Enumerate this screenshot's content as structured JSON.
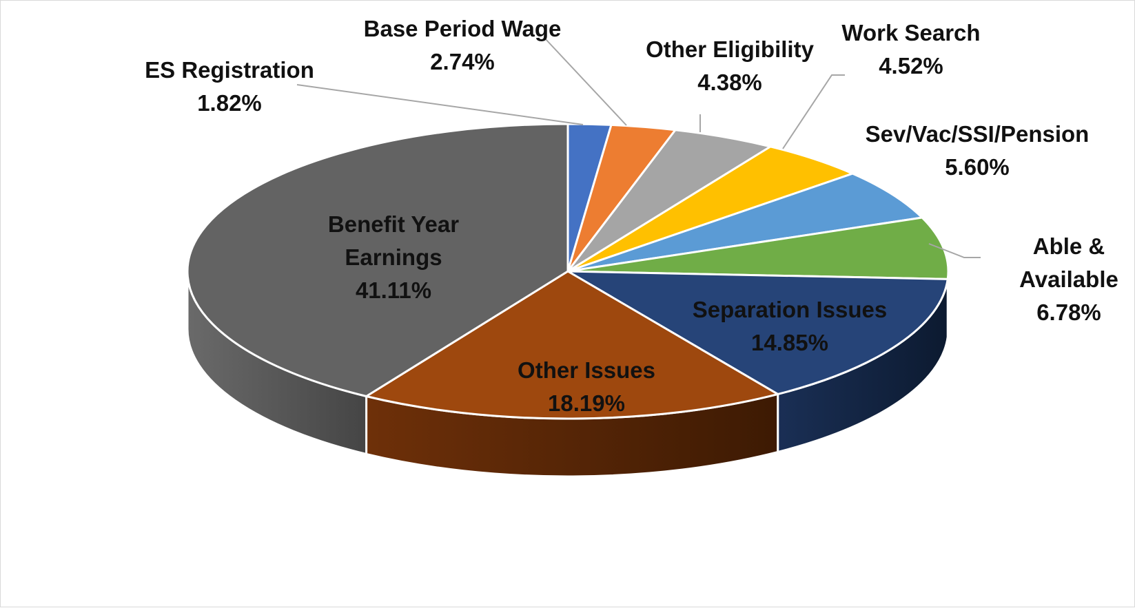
{
  "chart_data": {
    "type": "pie",
    "style": "3d-exploded-none",
    "title": "",
    "slices": [
      {
        "name": "ES Registration",
        "value": 1.82,
        "label": "1.82%",
        "color": "#4472c4"
      },
      {
        "name": "Base Period Wage",
        "value": 2.74,
        "label": "2.74%",
        "color": "#ed7d31"
      },
      {
        "name": "Other Eligibility",
        "value": 4.38,
        "label": "4.38%",
        "color": "#a5a5a5"
      },
      {
        "name": "Work Search",
        "value": 4.52,
        "label": "4.52%",
        "color": "#ffc000"
      },
      {
        "name": "Sev/Vac/SSI/Pension",
        "value": 5.6,
        "label": "5.60%",
        "color": "#5b9bd5"
      },
      {
        "name": "Able & Available",
        "value": 6.78,
        "label": "6.78%",
        "color": "#70ad47"
      },
      {
        "name": "Separation Issues",
        "value": 14.85,
        "label": "14.85%",
        "color": "#264478"
      },
      {
        "name": "Other Issues",
        "value": 18.19,
        "label": "18.19%",
        "color": "#9e480e"
      },
      {
        "name": "Benefit Year Earnings",
        "value": 41.11,
        "label": "41.11%",
        "color": "#636363"
      }
    ],
    "label_lines": {
      "able_available": [
        "Able &",
        "Available"
      ],
      "benefit_year": [
        "Benefit Year",
        "Earnings"
      ]
    }
  }
}
